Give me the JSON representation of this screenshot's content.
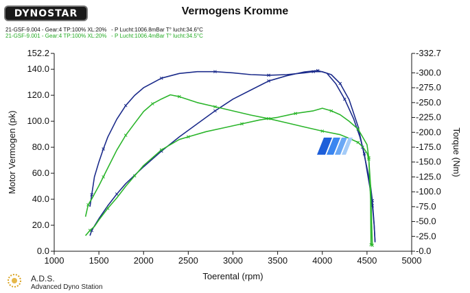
{
  "header": {
    "logo_text": "DYNOSTAR",
    "title": "Vermogens Kromme",
    "runs": [
      "21-GSF-9.004 - Gear:4 TP:100% XL:20%   - P Lucht:1006.8mBar T° lucht:34.6°C",
      "21-GSF-9.001 - Gear:4 TP:100% XL:20%   - P Lucht:1006.4mBar T° lucht:34.5°C"
    ]
  },
  "footer": {
    "name": "A.D.S.",
    "subtitle": "Advanced Dyno Station"
  },
  "colors": {
    "run1": "#1a2a8a",
    "run2": "#2ab52a",
    "axis": "#111111",
    "grid": "#d8d8d8"
  },
  "chart_data": {
    "type": "line",
    "title": "Vermogens Kromme",
    "xlabel": "Toerental (rpm)",
    "ylabel": "Motor Vermogen (pk)",
    "y2label": "Torque (Nm)",
    "xlim": [
      1000,
      5000
    ],
    "ylim": [
      0,
      152.2
    ],
    "y2lim": [
      0,
      332.7
    ],
    "grid": false,
    "x_ticks": [
      "1000",
      "1500",
      "2000",
      "2500",
      "3000",
      "3500",
      "4000",
      "4500",
      "5000"
    ],
    "y_ticks": [
      "0.0",
      "20.0",
      "40.0",
      "60.0",
      "80.0",
      "100.0",
      "120.0",
      "140.0",
      "152.2"
    ],
    "y2_ticks": [
      "-0.0",
      "-25.0",
      "-50.0",
      "-75.0",
      "-100.0",
      "-125.0",
      "-150.0",
      "-175.0",
      "-200.0",
      "-225.0",
      "-250.0",
      "-275.0",
      "-300.0",
      "-332.7"
    ],
    "series": [
      {
        "name": "21-GSF-9.004 torque",
        "axis": "right",
        "color": "#1a2a8a",
        "points": [
          [
            1400,
            75
          ],
          [
            1420,
            95
          ],
          [
            1450,
            125
          ],
          [
            1500,
            150
          ],
          [
            1550,
            172
          ],
          [
            1600,
            192
          ],
          [
            1700,
            222
          ],
          [
            1800,
            245
          ],
          [
            1900,
            262
          ],
          [
            2000,
            275
          ],
          [
            2200,
            291
          ],
          [
            2400,
            299
          ],
          [
            2600,
            302
          ],
          [
            2800,
            302
          ],
          [
            3000,
            300
          ],
          [
            3200,
            297
          ],
          [
            3400,
            296
          ],
          [
            3600,
            297
          ],
          [
            3800,
            300
          ],
          [
            3900,
            302
          ],
          [
            4000,
            302
          ],
          [
            4100,
            297
          ],
          [
            4200,
            282
          ],
          [
            4300,
            255
          ],
          [
            4400,
            210
          ],
          [
            4450,
            175
          ],
          [
            4500,
            140
          ],
          [
            4540,
            110
          ],
          [
            4560,
            85
          ],
          [
            4580,
            45
          ],
          [
            4590,
            15
          ]
        ]
      },
      {
        "name": "21-GSF-9.004 power",
        "axis": "left",
        "color": "#1a2a8a",
        "points": [
          [
            1400,
            12
          ],
          [
            1420,
            16
          ],
          [
            1500,
            25
          ],
          [
            1600,
            35
          ],
          [
            1700,
            44
          ],
          [
            1800,
            52
          ],
          [
            2000,
            65
          ],
          [
            2200,
            77
          ],
          [
            2400,
            88
          ],
          [
            2600,
            98
          ],
          [
            2800,
            108
          ],
          [
            3000,
            117
          ],
          [
            3200,
            124
          ],
          [
            3400,
            131
          ],
          [
            3600,
            135
          ],
          [
            3800,
            138
          ],
          [
            3950,
            139
          ],
          [
            4050,
            137
          ],
          [
            4150,
            129
          ],
          [
            4250,
            117
          ],
          [
            4350,
            102
          ],
          [
            4420,
            88
          ],
          [
            4470,
            75
          ],
          [
            4500,
            62
          ],
          [
            4530,
            50
          ],
          [
            4560,
            35
          ],
          [
            4580,
            20
          ],
          [
            4590,
            8
          ]
        ]
      },
      {
        "name": "21-GSF-9.001 torque",
        "axis": "right",
        "color": "#2ab52a",
        "points": [
          [
            1350,
            58
          ],
          [
            1380,
            78
          ],
          [
            1420,
            88
          ],
          [
            1500,
            110
          ],
          [
            1550,
            125
          ],
          [
            1600,
            140
          ],
          [
            1700,
            170
          ],
          [
            1800,
            195
          ],
          [
            1900,
            215
          ],
          [
            2000,
            235
          ],
          [
            2100,
            248
          ],
          [
            2200,
            256
          ],
          [
            2300,
            263
          ],
          [
            2400,
            260
          ],
          [
            2500,
            255
          ],
          [
            2600,
            250
          ],
          [
            2800,
            243
          ],
          [
            3000,
            236
          ],
          [
            3200,
            229
          ],
          [
            3400,
            223
          ],
          [
            3600,
            216
          ],
          [
            3800,
            209
          ],
          [
            4000,
            202
          ],
          [
            4200,
            196
          ],
          [
            4300,
            190
          ],
          [
            4400,
            183
          ],
          [
            4450,
            176
          ],
          [
            4500,
            165
          ],
          [
            4520,
            155
          ],
          [
            4540,
            110
          ],
          [
            4550,
            55
          ],
          [
            4560,
            10
          ]
        ]
      },
      {
        "name": "21-GSF-9.001 power",
        "axis": "left",
        "color": "#2ab52a",
        "points": [
          [
            1350,
            12
          ],
          [
            1400,
            16
          ],
          [
            1450,
            19
          ],
          [
            1500,
            24
          ],
          [
            1600,
            33
          ],
          [
            1700,
            41
          ],
          [
            1800,
            50
          ],
          [
            1900,
            58
          ],
          [
            2000,
            66
          ],
          [
            2100,
            72
          ],
          [
            2200,
            78
          ],
          [
            2300,
            82
          ],
          [
            2400,
            86
          ],
          [
            2500,
            88
          ],
          [
            2700,
            92
          ],
          [
            2900,
            95
          ],
          [
            3100,
            98
          ],
          [
            3300,
            101
          ],
          [
            3500,
            103
          ],
          [
            3700,
            106
          ],
          [
            3900,
            108
          ],
          [
            4000,
            110
          ],
          [
            4100,
            108
          ],
          [
            4200,
            105
          ],
          [
            4300,
            100
          ],
          [
            4400,
            94
          ],
          [
            4450,
            88
          ],
          [
            4500,
            82
          ],
          [
            4520,
            72
          ],
          [
            4530,
            55
          ],
          [
            4540,
            40
          ],
          [
            4545,
            5
          ]
        ]
      }
    ]
  }
}
